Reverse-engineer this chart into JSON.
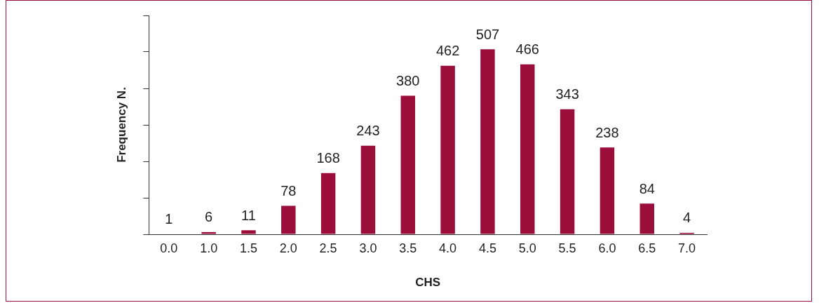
{
  "chart_data": {
    "type": "bar",
    "xlabel": "CHS",
    "ylabel": "Frequency N.",
    "categories": [
      "0.0",
      "1.0",
      "1.5",
      "2.0",
      "2.5",
      "3.0",
      "3.5",
      "4.0",
      "4.5",
      "5.0",
      "5.5",
      "6.0",
      "6.5",
      "7.0"
    ],
    "values": [
      1,
      6,
      11,
      78,
      168,
      243,
      380,
      462,
      507,
      466,
      343,
      238,
      84,
      4
    ],
    "color": "#9b0d3a",
    "data_labels": true,
    "ylim": [
      0,
      600
    ],
    "yticks": [
      {
        "value": 0,
        "label": null
      },
      {
        "value": 100,
        "label": null
      },
      {
        "value": 200,
        "label": null
      },
      {
        "value": 300,
        "label": null
      },
      {
        "value": 400,
        "label": null
      },
      {
        "value": 500,
        "label": null
      },
      {
        "value": 600,
        "label": null
      }
    ],
    "tick_labels": "x",
    "grid": false,
    "legend": false
  }
}
